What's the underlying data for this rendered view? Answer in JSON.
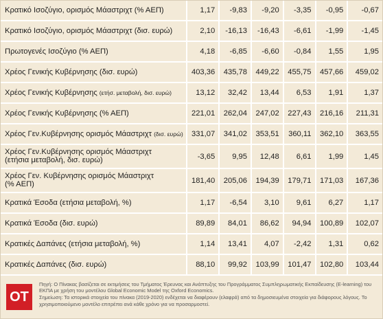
{
  "table": {
    "rows": [
      {
        "label": "Κρατικό Ισοζύγιο, ορισμός Μάαστριχτ (% ΑΕΠ)",
        "values": [
          "1,17",
          "-9,83",
          "-9,20",
          "-3,35",
          "-0,95",
          "-0,67"
        ]
      },
      {
        "label": "Κρατικό Ισοζύγιο, ορισμός Μάαστριχτ (δισ. ευρώ)",
        "values": [
          "2,10",
          "-16,13",
          "-16,43",
          "-6,61",
          "-1,99",
          "-1,45"
        ]
      },
      {
        "label": "Πρωτογενές Ισοζύγιο (% ΑΕΠ)",
        "values": [
          "4,18",
          "-6,85",
          "-6,60",
          "-0,84",
          "1,55",
          "1,95"
        ]
      },
      {
        "label": "Χρέος Γενικής Κυβέρνησης (δισ. ευρώ)",
        "values": [
          "403,36",
          "435,78",
          "449,22",
          "455,75",
          "457,66",
          "459,02"
        ]
      },
      {
        "label": "Χρέος Γενικής Κυβέρνησης",
        "small": "(ετήσ. μεταβολή, δισ. ευρώ)",
        "values": [
          "13,12",
          "32,42",
          "13,44",
          "6,53",
          "1,91",
          "1,37"
        ]
      },
      {
        "label": "Χρέος Γενικής Κυβέρνησης (% ΑΕΠ)",
        "values": [
          "221,01",
          "262,04",
          "247,02",
          "227,43",
          "216,16",
          "211,31"
        ]
      },
      {
        "label": "Χρέος Γεν.Κυβέρνησης ορισμός Μάαστριχτ",
        "small": "(δισ. ευρώ)",
        "values": [
          "331,07",
          "341,02",
          "353,51",
          "360,11",
          "362,10",
          "363,55"
        ]
      },
      {
        "label": "Χρέος Γεν.Κυβέρνησης ορισμός Μάαστριχτ",
        "wrap": "(ετήσια μεταβολή, δισ. ευρώ)",
        "values": [
          "-3,65",
          "9,95",
          "12,48",
          "6,61",
          "1,99",
          "1,45"
        ]
      },
      {
        "label": "Χρέος Γεν. Κυβέρνησης ορισμός Μάαστριχτ",
        "wrap": "(% ΑΕΠ)",
        "values": [
          "181,40",
          "205,06",
          "194,39",
          "179,71",
          "171,03",
          "167,36"
        ]
      },
      {
        "label": "Κρατικά Έσοδα (ετήσια μεταβολή, %)",
        "values": [
          "1,17",
          "-6,54",
          "3,10",
          "9,61",
          "6,27",
          "1,17"
        ]
      },
      {
        "label": "Κρατικά Έσοδα (δισ. ευρώ)",
        "values": [
          "89,89",
          "84,01",
          "86,62",
          "94,94",
          "100,89",
          "102,07"
        ]
      },
      {
        "label": "Κρατικές Δαπάνες (ετήσια μεταβολή, %)",
        "values": [
          "1,14",
          "13,41",
          "4,07",
          "-2,42",
          "1,31",
          "0,62"
        ]
      },
      {
        "label": "Κρατικές Δαπάνες (δισ. ευρώ)",
        "values": [
          "88,10",
          "99,92",
          "103,99",
          "101,47",
          "102,80",
          "103,44"
        ]
      }
    ]
  },
  "footer": {
    "logo": "ΟΤ",
    "notes": [
      "Πηγή: Ο Πίνακας βασίζεται σε εκτιμήσεις του Τμήματος Έρευνας και Ανάπτυξης του Προγράμματος Συμπληρωματικής Εκπαίδευσης (E-learning) του ΕΚΠΑ με χρήση του μοντέλου Global Economic Model της Oxford Economics.",
      "Σημείωση: Τα ιστορικά στοιχεία του πίνακα (2019-2020) ενδέχεται να διαφέρουν (ελαφρά) από τα δημοσιευμένα στοιχεία για διάφορους λόγους. Το χρησιμοποιούμενο μοντέλο επιτρέπει ανά κάθε χρόνο για να προσαρμοστεί."
    ]
  }
}
